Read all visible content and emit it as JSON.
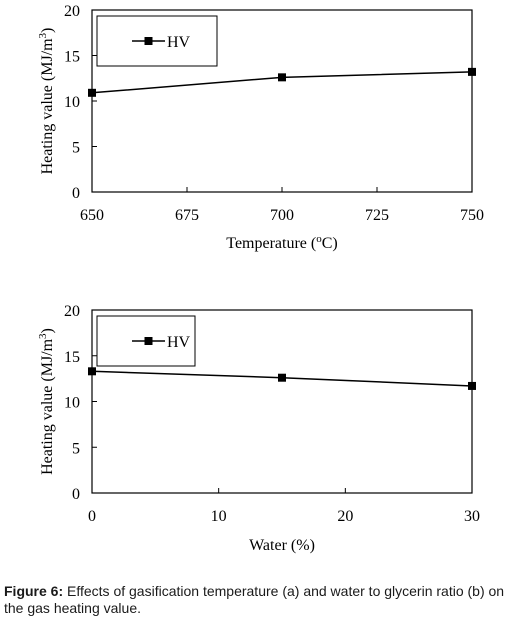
{
  "chart_data": [
    {
      "type": "line",
      "x": [
        650,
        700,
        750
      ],
      "series": [
        {
          "name": "HV",
          "values": [
            10.9,
            12.6,
            13.2
          ]
        }
      ],
      "xlabel": "Temperature (",
      "xlabel_sup": "o",
      "xlabel_suffix": "C)",
      "ylabel": "Heating value (MJ/m",
      "ylabel_sup": "3",
      "ylabel_suffix": ")",
      "xlim": [
        650,
        750
      ],
      "ylim": [
        0,
        20
      ],
      "xticks": [
        650,
        675,
        700,
        725,
        750
      ],
      "yticks": [
        0,
        5,
        10,
        15,
        20
      ],
      "grid": false,
      "legend": "top-left",
      "marker": "square"
    },
    {
      "type": "line",
      "x": [
        0,
        15,
        30
      ],
      "series": [
        {
          "name": "HV",
          "values": [
            13.3,
            12.6,
            11.7
          ]
        }
      ],
      "xlabel": "Water (%)",
      "xlabel_sup": "",
      "xlabel_suffix": "",
      "ylabel": "Heating value (MJ/m",
      "ylabel_sup": "3",
      "ylabel_suffix": ")",
      "xlim": [
        0,
        30
      ],
      "ylim": [
        0,
        20
      ],
      "xticks": [
        0,
        10,
        20,
        30
      ],
      "yticks": [
        0,
        5,
        10,
        15,
        20
      ],
      "grid": false,
      "legend": "top-left",
      "marker": "square"
    }
  ],
  "caption": {
    "label": "Figure 6:",
    "text": " Effects of gasification temperature (a) and water to glycerin ratio (b) on the gas heating value."
  }
}
